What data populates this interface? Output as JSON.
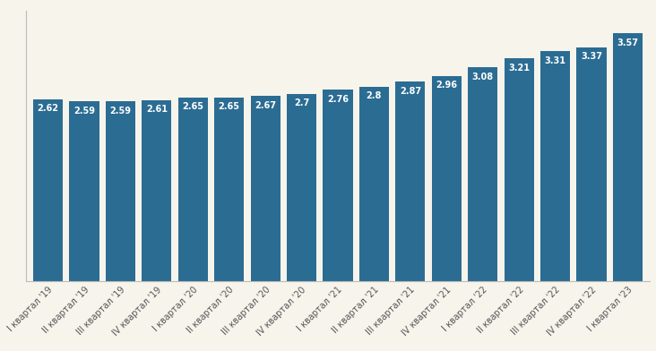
{
  "chart_data": {
    "type": "bar",
    "categories": [
      "I квартал '19",
      "II квартал '19",
      "III квартал '19",
      "IV квартал '19",
      "I квартал '20",
      "II квартал '20",
      "III квартал '20",
      "IV квартал '20",
      "I квартал '21",
      "II квартал '21",
      "III квартал '21",
      "IV квартал '21",
      "I квартал '22",
      "II квартал '22",
      "III квартал '22",
      "IV квартал '22",
      "I квартал '23"
    ],
    "values": [
      2.62,
      2.59,
      2.59,
      2.61,
      2.65,
      2.65,
      2.67,
      2.7,
      2.76,
      2.8,
      2.87,
      2.96,
      3.08,
      3.21,
      3.31,
      3.37,
      3.57
    ],
    "color": "#2b6c93",
    "ylim": [
      0,
      3.9
    ],
    "yticks": [],
    "data_labels": true,
    "tick_labels": "x",
    "grid": false
  }
}
